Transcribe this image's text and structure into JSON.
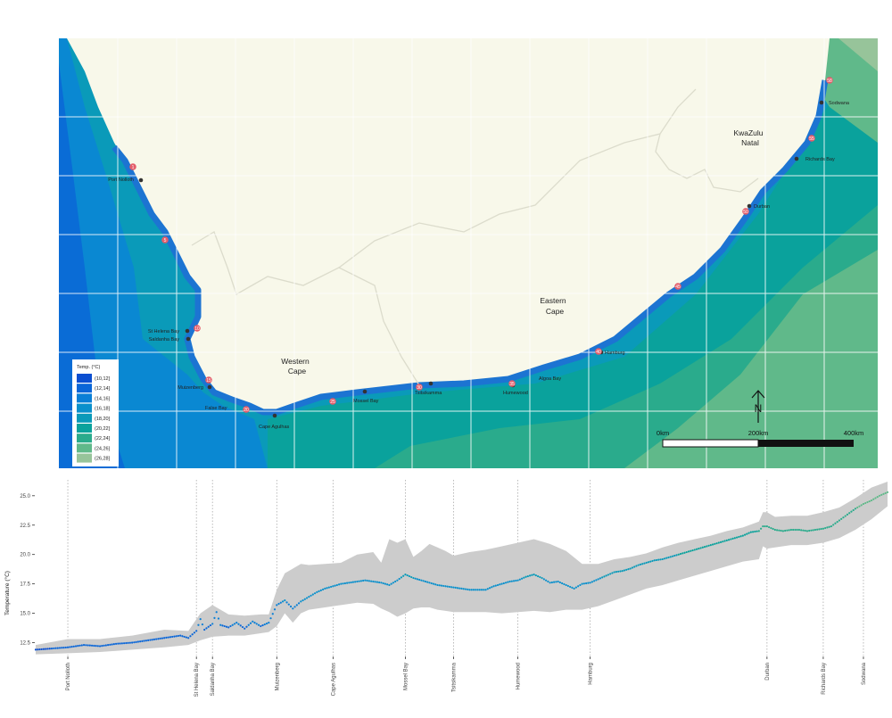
{
  "map": {
    "regions": [
      {
        "key": "western-cape",
        "lines": [
          "Western",
          "Cape"
        ]
      },
      {
        "key": "eastern-cape",
        "lines": [
          "Eastern",
          "Cape"
        ]
      },
      {
        "key": "kwazulu-natal",
        "lines": [
          "KwaZulu",
          "Natal"
        ]
      }
    ],
    "places": [
      {
        "name": "Port Nolloth"
      },
      {
        "name": "St Helena Bay"
      },
      {
        "name": "Saldanha Bay"
      },
      {
        "name": "Muizenberg"
      },
      {
        "name": "False Bay"
      },
      {
        "name": "Cape Agulhas"
      },
      {
        "name": "Mossel Bay"
      },
      {
        "name": "Tsitsikamma"
      },
      {
        "name": "Humewood"
      },
      {
        "name": "Algoa Bay"
      },
      {
        "name": "Hamburg"
      },
      {
        "name": "Durban"
      },
      {
        "name": "Richards Bay"
      },
      {
        "name": "Sodwana"
      }
    ],
    "site_markers": [
      "1",
      "5",
      "10",
      "15",
      "20",
      "25",
      "30",
      "35",
      "40",
      "45",
      "50",
      "55",
      "58"
    ],
    "legend": {
      "title": "Temp. (°C)",
      "items": [
        {
          "label": "(10,12]",
          "color": "#0b4fd1"
        },
        {
          "label": "(12,14]",
          "color": "#0a66d8"
        },
        {
          "label": "(14,16]",
          "color": "#0a7fd6"
        },
        {
          "label": "(16,18]",
          "color": "#0a90cc"
        },
        {
          "label": "(18,20]",
          "color": "#0a9ab9"
        },
        {
          "label": "(20,22]",
          "color": "#0aa29c"
        },
        {
          "label": "(22,24]",
          "color": "#2aab8c"
        },
        {
          "label": "(24,26]",
          "color": "#60b98a"
        },
        {
          "label": "(26,28]",
          "color": "#97c49a"
        }
      ]
    },
    "north_label": "N",
    "scalebar": {
      "labels": [
        "0km",
        "200km",
        "400km"
      ]
    },
    "colors": {
      "land": "#f8f8ea",
      "border": "#dcdccc",
      "ocean_deep": "#0a9ab9"
    }
  },
  "chart_data": {
    "type": "scatter",
    "title": "",
    "xlabel": "",
    "ylabel": "Temperature (°C)",
    "ylim": [
      11.4,
      26.2
    ],
    "yticks": [
      "12.5",
      "15.0",
      "17.5",
      "20.0",
      "22.5",
      "25.0"
    ],
    "ytick_values": [
      12.5,
      15.0,
      17.5,
      20.0,
      22.5,
      25.0
    ],
    "x_sites": [
      {
        "label": "Port Nolloth",
        "x": 4
      },
      {
        "label": "St Helena Bay",
        "x": 20
      },
      {
        "label": "Saldanha Bay",
        "x": 22
      },
      {
        "label": "Muizenberg",
        "x": 30
      },
      {
        "label": "Cape Agulhas",
        "x": 37
      },
      {
        "label": "Mossel Bay",
        "x": 46
      },
      {
        "label": "Tsitsikamma",
        "x": 52
      },
      {
        "label": "Humewood",
        "x": 60
      },
      {
        "label": "Hamburg",
        "x": 69
      },
      {
        "label": "Durban",
        "x": 91
      },
      {
        "label": "Richards Bay",
        "x": 98
      },
      {
        "label": "Sodwana",
        "x": 103
      }
    ],
    "xlim": [
      0,
      106
    ],
    "series": [
      {
        "mean": [
          [
            0,
            11.9
          ],
          [
            2,
            12.0
          ],
          [
            4,
            12.1
          ],
          [
            6,
            12.3
          ],
          [
            8,
            12.2
          ],
          [
            10,
            12.4
          ],
          [
            12,
            12.5
          ],
          [
            14,
            12.7
          ],
          [
            16,
            12.9
          ],
          [
            18,
            13.1
          ],
          [
            19,
            12.9
          ],
          [
            20,
            13.5
          ],
          [
            20.5,
            14.5
          ],
          [
            21,
            13.6
          ],
          [
            22,
            14.1
          ],
          [
            22.5,
            15.1
          ],
          [
            23,
            14.0
          ],
          [
            24,
            13.8
          ],
          [
            25,
            14.2
          ],
          [
            26,
            13.7
          ],
          [
            27,
            14.3
          ],
          [
            28,
            13.9
          ],
          [
            29,
            14.2
          ],
          [
            30,
            15.7
          ],
          [
            31,
            16.1
          ],
          [
            32,
            15.4
          ],
          [
            33,
            16.0
          ],
          [
            34,
            16.4
          ],
          [
            35,
            16.8
          ],
          [
            36,
            17.1
          ],
          [
            37,
            17.3
          ],
          [
            38,
            17.5
          ],
          [
            39,
            17.6
          ],
          [
            40,
            17.7
          ],
          [
            41,
            17.8
          ],
          [
            42,
            17.7
          ],
          [
            43,
            17.6
          ],
          [
            44,
            17.4
          ],
          [
            45,
            17.8
          ],
          [
            46,
            18.3
          ],
          [
            47,
            18.0
          ],
          [
            48,
            17.8
          ],
          [
            49,
            17.6
          ],
          [
            50,
            17.4
          ],
          [
            51,
            17.3
          ],
          [
            52,
            17.2
          ],
          [
            53,
            17.1
          ],
          [
            54,
            17.0
          ],
          [
            55,
            17.0
          ],
          [
            56,
            17.0
          ],
          [
            57,
            17.3
          ],
          [
            58,
            17.5
          ],
          [
            59,
            17.7
          ],
          [
            60,
            17.8
          ],
          [
            61,
            18.1
          ],
          [
            62,
            18.3
          ],
          [
            63,
            18.0
          ],
          [
            64,
            17.6
          ],
          [
            65,
            17.7
          ],
          [
            66,
            17.4
          ],
          [
            67,
            17.1
          ],
          [
            68,
            17.5
          ],
          [
            69,
            17.6
          ],
          [
            70,
            17.9
          ],
          [
            71,
            18.2
          ],
          [
            72,
            18.5
          ],
          [
            73,
            18.6
          ],
          [
            74,
            18.8
          ],
          [
            75,
            19.1
          ],
          [
            76,
            19.3
          ],
          [
            77,
            19.5
          ],
          [
            78,
            19.6
          ],
          [
            79,
            19.8
          ],
          [
            80,
            20.0
          ],
          [
            81,
            20.2
          ],
          [
            82,
            20.4
          ],
          [
            83,
            20.6
          ],
          [
            84,
            20.8
          ],
          [
            85,
            21.0
          ],
          [
            86,
            21.2
          ],
          [
            87,
            21.4
          ],
          [
            88,
            21.6
          ],
          [
            89,
            21.9
          ],
          [
            90,
            22.0
          ],
          [
            90.5,
            22.4
          ],
          [
            91,
            22.4
          ],
          [
            92,
            22.1
          ],
          [
            93,
            22.0
          ],
          [
            94,
            22.1
          ],
          [
            95,
            22.1
          ],
          [
            96,
            22.0
          ],
          [
            97,
            22.1
          ],
          [
            98,
            22.2
          ],
          [
            99,
            22.4
          ],
          [
            100,
            22.9
          ],
          [
            101,
            23.4
          ],
          [
            102,
            23.9
          ],
          [
            103,
            24.3
          ],
          [
            104,
            24.6
          ],
          [
            105,
            25.0
          ],
          [
            106,
            25.3
          ]
        ],
        "band": [
          [
            0,
            11.5,
            12.3
          ],
          [
            4,
            11.6,
            12.8
          ],
          [
            8,
            11.7,
            12.8
          ],
          [
            12,
            11.9,
            13.1
          ],
          [
            16,
            12.1,
            13.6
          ],
          [
            19,
            12.3,
            13.5
          ],
          [
            20.5,
            12.7,
            15.0
          ],
          [
            22,
            13.0,
            15.7
          ],
          [
            24,
            13.1,
            14.9
          ],
          [
            26,
            13.1,
            14.8
          ],
          [
            28,
            13.3,
            14.9
          ],
          [
            29,
            13.4,
            14.9
          ],
          [
            30,
            13.9,
            17.0
          ],
          [
            31,
            15.0,
            18.4
          ],
          [
            32,
            14.2,
            18.8
          ],
          [
            33,
            15.0,
            19.2
          ],
          [
            34,
            15.3,
            19.1
          ],
          [
            36,
            15.5,
            19.2
          ],
          [
            38,
            15.7,
            19.3
          ],
          [
            40,
            15.9,
            20.0
          ],
          [
            42,
            15.8,
            20.2
          ],
          [
            43,
            15.4,
            19.3
          ],
          [
            44,
            15.1,
            21.3
          ],
          [
            45,
            14.7,
            21.0
          ],
          [
            46,
            15.0,
            21.3
          ],
          [
            47,
            15.4,
            19.8
          ],
          [
            48,
            15.5,
            20.3
          ],
          [
            49,
            15.5,
            20.9
          ],
          [
            50,
            15.3,
            20.6
          ],
          [
            51,
            15.2,
            20.3
          ],
          [
            52,
            15.1,
            19.9
          ],
          [
            54,
            15.1,
            20.2
          ],
          [
            56,
            15.1,
            20.4
          ],
          [
            58,
            15.0,
            20.7
          ],
          [
            60,
            15.1,
            21.0
          ],
          [
            62,
            15.2,
            21.3
          ],
          [
            64,
            15.1,
            20.9
          ],
          [
            66,
            15.3,
            20.3
          ],
          [
            68,
            15.3,
            19.2
          ],
          [
            70,
            15.6,
            19.2
          ],
          [
            72,
            16.1,
            19.6
          ],
          [
            74,
            16.6,
            19.8
          ],
          [
            76,
            17.1,
            20.1
          ],
          [
            78,
            17.4,
            20.6
          ],
          [
            80,
            17.8,
            21.0
          ],
          [
            82,
            18.2,
            21.3
          ],
          [
            84,
            18.6,
            21.6
          ],
          [
            86,
            19.0,
            22.0
          ],
          [
            88,
            19.4,
            22.3
          ],
          [
            90,
            19.6,
            22.8
          ],
          [
            90.5,
            20.7,
            23.6
          ],
          [
            91,
            20.5,
            23.6
          ],
          [
            92,
            20.6,
            23.2
          ],
          [
            94,
            20.8,
            23.3
          ],
          [
            96,
            20.8,
            23.3
          ],
          [
            98,
            21.0,
            23.6
          ],
          [
            100,
            21.4,
            24.0
          ],
          [
            102,
            22.1,
            24.8
          ],
          [
            104,
            23.0,
            25.7
          ],
          [
            106,
            24.1,
            26.2
          ]
        ]
      }
    ]
  }
}
